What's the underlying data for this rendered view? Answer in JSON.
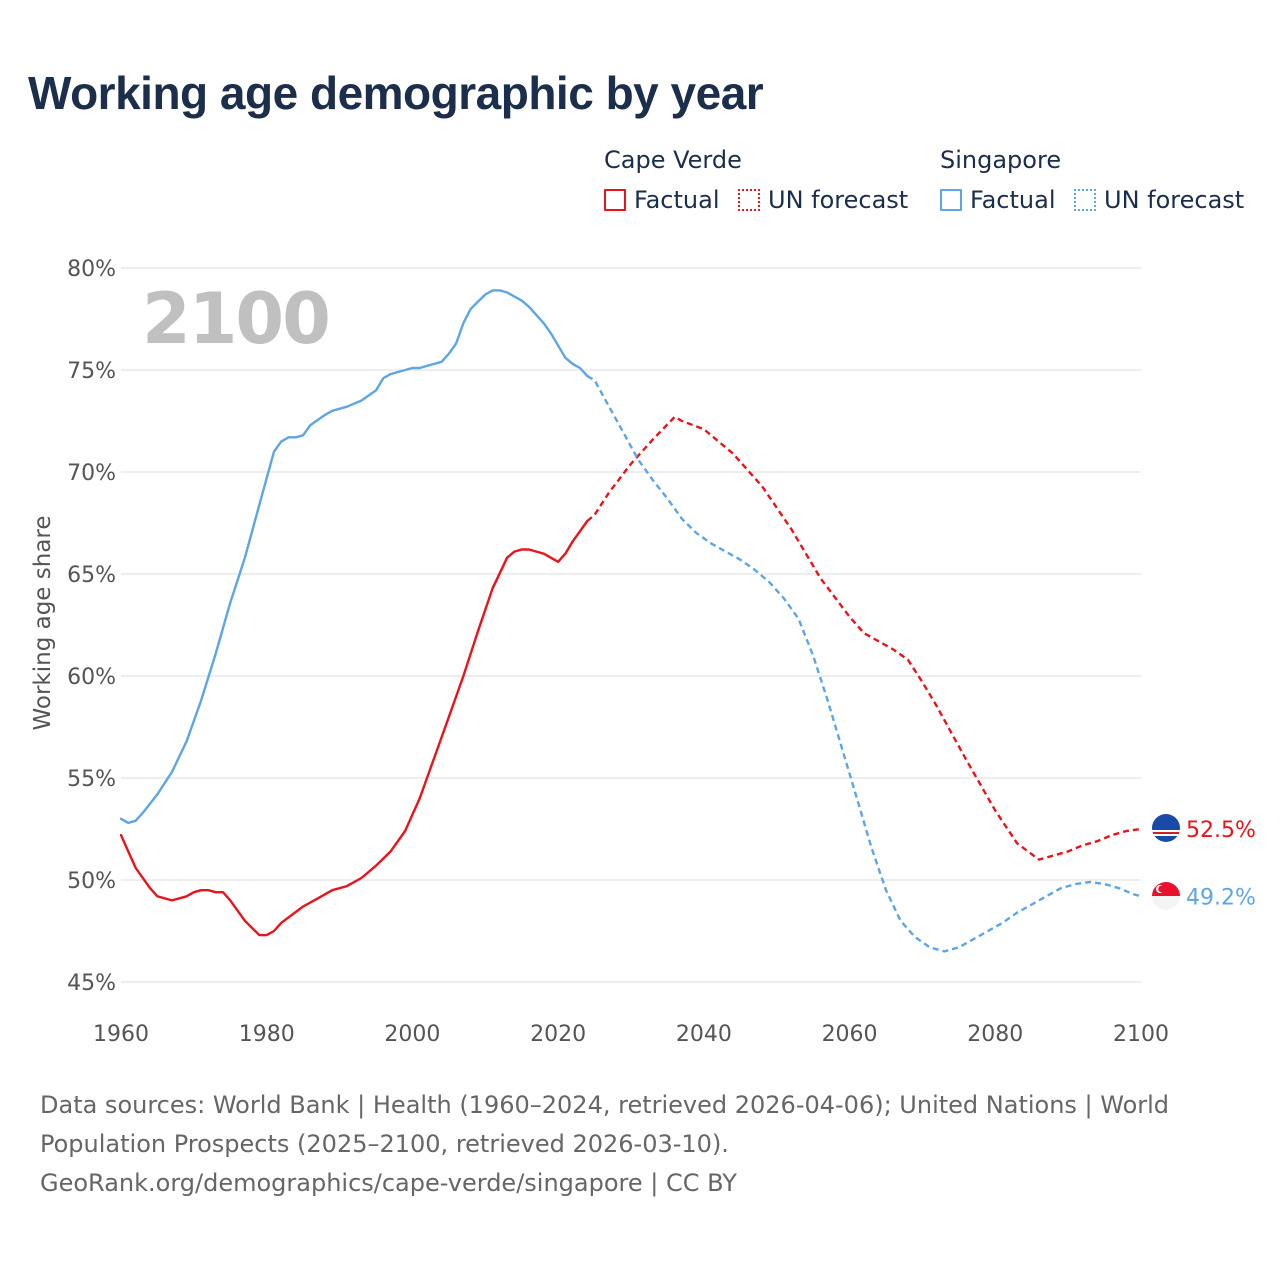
{
  "title": "Working age demographic by year",
  "legend": {
    "groups": [
      {
        "name": "Cape Verde",
        "color": "#e8141b",
        "factual_label": "Factual",
        "forecast_label": "UN forecast"
      },
      {
        "name": "Singapore",
        "color": "#5ea5e4",
        "factual_label": "Factual",
        "forecast_label": "UN forecast"
      }
    ]
  },
  "year_display": "2100",
  "footer": {
    "sources": "Data sources: World Bank | Health (1960–2024, retrieved 2026-04-06); United Nations | World Population Prospects (2025–2100, retrieved 2026-03-10).",
    "link": "GeoRank.org/demographics/cape-verde/singapore | CC BY"
  },
  "chart_data": {
    "type": "line",
    "title": "Working age demographic by year",
    "xlabel": "",
    "ylabel": "Working age share",
    "xlim": [
      1960,
      2100
    ],
    "ylim": [
      45,
      80
    ],
    "x_ticks": [
      1960,
      1980,
      2000,
      2020,
      2040,
      2060,
      2080,
      2100
    ],
    "y_ticks": [
      45,
      50,
      55,
      60,
      65,
      70,
      75,
      80
    ],
    "y_tick_labels": [
      "45%",
      "50%",
      "55%",
      "60%",
      "65%",
      "70%",
      "75%",
      "80%"
    ],
    "grid": true,
    "factual_end_year": 2024,
    "series": [
      {
        "name": "Cape Verde",
        "color": "#e8141b",
        "end_label": "52.5%",
        "flag": "cape-verde",
        "points": [
          [
            1960,
            52.2
          ],
          [
            1962,
            50.6
          ],
          [
            1964,
            49.6
          ],
          [
            1965,
            49.2
          ],
          [
            1967,
            49.0
          ],
          [
            1969,
            49.2
          ],
          [
            1970,
            49.4
          ],
          [
            1971,
            49.5
          ],
          [
            1972,
            49.5
          ],
          [
            1973,
            49.4
          ],
          [
            1974,
            49.4
          ],
          [
            1975,
            49.0
          ],
          [
            1977,
            48.0
          ],
          [
            1979,
            47.3
          ],
          [
            1980,
            47.3
          ],
          [
            1981,
            47.5
          ],
          [
            1982,
            47.9
          ],
          [
            1985,
            48.7
          ],
          [
            1987,
            49.1
          ],
          [
            1989,
            49.5
          ],
          [
            1991,
            49.7
          ],
          [
            1993,
            50.1
          ],
          [
            1995,
            50.7
          ],
          [
            1997,
            51.4
          ],
          [
            1999,
            52.4
          ],
          [
            2001,
            54.0
          ],
          [
            2003,
            56.0
          ],
          [
            2005,
            58.0
          ],
          [
            2007,
            60.0
          ],
          [
            2009,
            62.2
          ],
          [
            2011,
            64.3
          ],
          [
            2013,
            65.8
          ],
          [
            2014,
            66.1
          ],
          [
            2015,
            66.2
          ],
          [
            2016,
            66.2
          ],
          [
            2018,
            66.0
          ],
          [
            2020,
            65.6
          ],
          [
            2021,
            66.0
          ],
          [
            2022,
            66.6
          ],
          [
            2024,
            67.6
          ],
          [
            2025,
            67.9
          ],
          [
            2027,
            69.0
          ],
          [
            2030,
            70.4
          ],
          [
            2033,
            71.6
          ],
          [
            2036,
            72.7
          ],
          [
            2037,
            72.5
          ],
          [
            2040,
            72.1
          ],
          [
            2044,
            70.9
          ],
          [
            2048,
            69.3
          ],
          [
            2052,
            67.2
          ],
          [
            2056,
            64.8
          ],
          [
            2060,
            62.9
          ],
          [
            2062,
            62.1
          ],
          [
            2064,
            61.7
          ],
          [
            2066,
            61.3
          ],
          [
            2068,
            60.8
          ],
          [
            2070,
            59.7
          ],
          [
            2072,
            58.5
          ],
          [
            2076,
            55.9
          ],
          [
            2080,
            53.4
          ],
          [
            2083,
            51.8
          ],
          [
            2086,
            51.0
          ],
          [
            2088,
            51.2
          ],
          [
            2090,
            51.4
          ],
          [
            2092,
            51.7
          ],
          [
            2094,
            51.9
          ],
          [
            2096,
            52.2
          ],
          [
            2098,
            52.4
          ],
          [
            2100,
            52.5
          ]
        ]
      },
      {
        "name": "Singapore",
        "color": "#5ea5e4",
        "end_label": "49.2%",
        "flag": "singapore",
        "points": [
          [
            1960,
            53.0
          ],
          [
            1961,
            52.8
          ],
          [
            1962,
            52.9
          ],
          [
            1963,
            53.3
          ],
          [
            1965,
            54.2
          ],
          [
            1967,
            55.3
          ],
          [
            1969,
            56.8
          ],
          [
            1971,
            58.8
          ],
          [
            1973,
            61.1
          ],
          [
            1975,
            63.6
          ],
          [
            1977,
            65.8
          ],
          [
            1979,
            68.4
          ],
          [
            1981,
            71.0
          ],
          [
            1982,
            71.5
          ],
          [
            1983,
            71.7
          ],
          [
            1984,
            71.7
          ],
          [
            1985,
            71.8
          ],
          [
            1986,
            72.3
          ],
          [
            1988,
            72.8
          ],
          [
            1989,
            73.0
          ],
          [
            1991,
            73.2
          ],
          [
            1993,
            73.5
          ],
          [
            1995,
            74.0
          ],
          [
            1996,
            74.6
          ],
          [
            1997,
            74.8
          ],
          [
            1998,
            74.9
          ],
          [
            2000,
            75.1
          ],
          [
            2001,
            75.1
          ],
          [
            2002,
            75.2
          ],
          [
            2004,
            75.4
          ],
          [
            2005,
            75.8
          ],
          [
            2006,
            76.3
          ],
          [
            2007,
            77.3
          ],
          [
            2008,
            78.0
          ],
          [
            2010,
            78.7
          ],
          [
            2011,
            78.9
          ],
          [
            2012,
            78.9
          ],
          [
            2013,
            78.8
          ],
          [
            2015,
            78.4
          ],
          [
            2016,
            78.1
          ],
          [
            2018,
            77.3
          ],
          [
            2019,
            76.8
          ],
          [
            2021,
            75.6
          ],
          [
            2022,
            75.3
          ],
          [
            2023,
            75.1
          ],
          [
            2024,
            74.7
          ],
          [
            2025,
            74.5
          ],
          [
            2027,
            73.2
          ],
          [
            2029,
            71.9
          ],
          [
            2031,
            70.6
          ],
          [
            2033,
            69.6
          ],
          [
            2035,
            68.7
          ],
          [
            2037,
            67.7
          ],
          [
            2039,
            67.0
          ],
          [
            2041,
            66.5
          ],
          [
            2043,
            66.1
          ],
          [
            2045,
            65.7
          ],
          [
            2047,
            65.2
          ],
          [
            2049,
            64.6
          ],
          [
            2051,
            63.8
          ],
          [
            2053,
            62.8
          ],
          [
            2055,
            61.0
          ],
          [
            2057,
            58.8
          ],
          [
            2059,
            56.4
          ],
          [
            2061,
            54.0
          ],
          [
            2063,
            51.6
          ],
          [
            2065,
            49.5
          ],
          [
            2067,
            48.0
          ],
          [
            2069,
            47.2
          ],
          [
            2071,
            46.7
          ],
          [
            2073,
            46.5
          ],
          [
            2075,
            46.7
          ],
          [
            2077,
            47.1
          ],
          [
            2079,
            47.5
          ],
          [
            2081,
            47.9
          ],
          [
            2083,
            48.4
          ],
          [
            2085,
            48.8
          ],
          [
            2087,
            49.2
          ],
          [
            2089,
            49.6
          ],
          [
            2091,
            49.8
          ],
          [
            2093,
            49.9
          ],
          [
            2095,
            49.8
          ],
          [
            2097,
            49.6
          ],
          [
            2099,
            49.3
          ],
          [
            2100,
            49.2
          ]
        ]
      }
    ]
  }
}
